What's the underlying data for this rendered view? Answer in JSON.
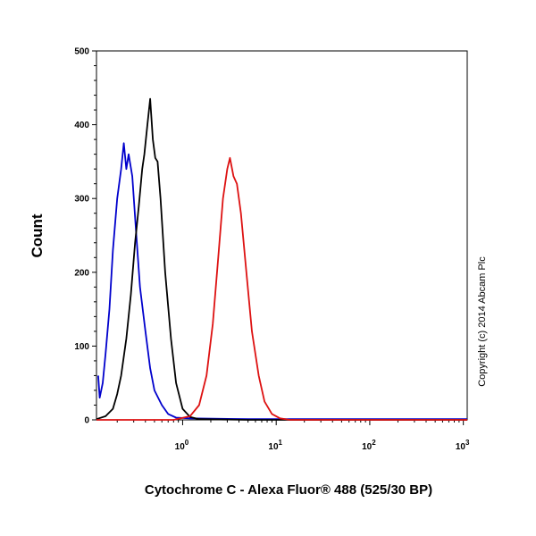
{
  "chart_data": {
    "type": "line",
    "title": "",
    "xlabel": "Cytochrome C - Alexa Fluor® 488 (525/30 BP)",
    "ylabel": "Count",
    "xscale": "log",
    "xlim": [
      0.12,
      1100
    ],
    "ylim": [
      0,
      500
    ],
    "x_ticks": [
      {
        "base": "10",
        "exp": "0",
        "value": 1
      },
      {
        "base": "10",
        "exp": "1",
        "value": 10
      },
      {
        "base": "10",
        "exp": "2",
        "value": 100
      },
      {
        "base": "10",
        "exp": "3",
        "value": 1000
      }
    ],
    "y_ticks": [
      {
        "label": "0",
        "value": 0
      },
      {
        "label": "100",
        "value": 100
      },
      {
        "label": "200",
        "value": 200
      },
      {
        "label": "300",
        "value": 300
      },
      {
        "label": "400",
        "value": 400
      },
      {
        "label": "500",
        "value": 500
      }
    ],
    "grid": false,
    "legend": "none",
    "series": [
      {
        "color": "#0000cc",
        "points": [
          [
            0.125,
            60
          ],
          [
            0.13,
            30
          ],
          [
            0.14,
            50
          ],
          [
            0.15,
            90
          ],
          [
            0.165,
            150
          ],
          [
            0.18,
            230
          ],
          [
            0.2,
            300
          ],
          [
            0.22,
            340
          ],
          [
            0.235,
            375
          ],
          [
            0.25,
            340
          ],
          [
            0.265,
            360
          ],
          [
            0.29,
            330
          ],
          [
            0.32,
            250
          ],
          [
            0.35,
            180
          ],
          [
            0.4,
            120
          ],
          [
            0.45,
            70
          ],
          [
            0.5,
            40
          ],
          [
            0.6,
            20
          ],
          [
            0.7,
            8
          ],
          [
            0.85,
            3
          ],
          [
            1.2,
            2
          ],
          [
            5,
            1
          ],
          [
            30,
            1
          ],
          [
            200,
            1
          ],
          [
            1100,
            1
          ]
        ]
      },
      {
        "color": "#000000",
        "points": [
          [
            0.12,
            1
          ],
          [
            0.15,
            5
          ],
          [
            0.18,
            15
          ],
          [
            0.2,
            35
          ],
          [
            0.22,
            60
          ],
          [
            0.25,
            110
          ],
          [
            0.28,
            170
          ],
          [
            0.31,
            240
          ],
          [
            0.34,
            290
          ],
          [
            0.37,
            340
          ],
          [
            0.39,
            360
          ],
          [
            0.42,
            400
          ],
          [
            0.45,
            435
          ],
          [
            0.48,
            380
          ],
          [
            0.51,
            355
          ],
          [
            0.54,
            350
          ],
          [
            0.58,
            300
          ],
          [
            0.65,
            200
          ],
          [
            0.75,
            110
          ],
          [
            0.85,
            50
          ],
          [
            1.0,
            15
          ],
          [
            1.2,
            4
          ],
          [
            1.5,
            1
          ],
          [
            5,
            0
          ],
          [
            100,
            0
          ],
          [
            1100,
            0
          ]
        ]
      },
      {
        "color": "#dd1111",
        "points": [
          [
            0.12,
            0
          ],
          [
            0.8,
            0
          ],
          [
            1.2,
            5
          ],
          [
            1.5,
            20
          ],
          [
            1.8,
            60
          ],
          [
            2.1,
            130
          ],
          [
            2.4,
            220
          ],
          [
            2.7,
            300
          ],
          [
            3.0,
            340
          ],
          [
            3.2,
            355
          ],
          [
            3.5,
            330
          ],
          [
            3.8,
            320
          ],
          [
            4.2,
            280
          ],
          [
            4.8,
            200
          ],
          [
            5.5,
            120
          ],
          [
            6.5,
            60
          ],
          [
            7.5,
            25
          ],
          [
            9,
            8
          ],
          [
            11,
            2
          ],
          [
            14,
            0
          ],
          [
            100,
            0
          ],
          [
            1100,
            0
          ]
        ]
      }
    ]
  },
  "copyright": "Copyright (c) 2014 Abcam Plc"
}
